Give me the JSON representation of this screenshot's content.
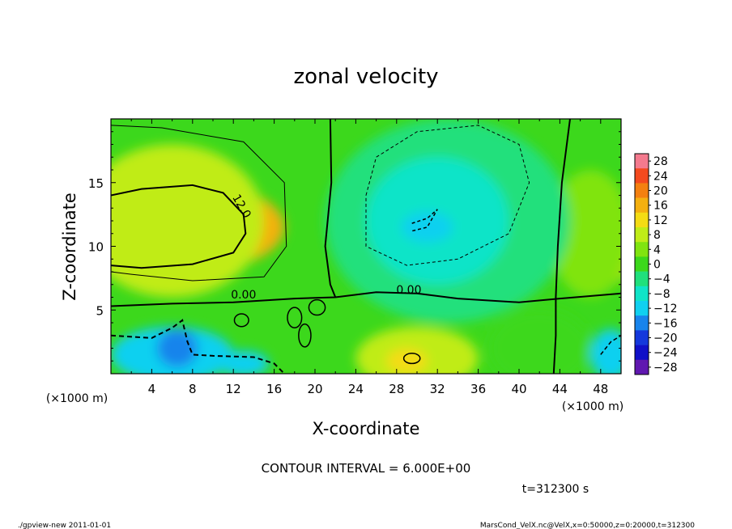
{
  "chart_data": {
    "type": "heatmap",
    "title": "zonal velocity",
    "xlabel": "X-coordinate",
    "ylabel": "Z-coordinate",
    "x_unit_label": "(×1000 m)",
    "z_unit_label": "(×1000 m)",
    "xlim": [
      0,
      50
    ],
    "ylim": [
      0,
      20
    ],
    "x_ticks": [
      {
        "value": 4,
        "label": "4"
      },
      {
        "value": 8,
        "label": "8"
      },
      {
        "value": 12,
        "label": "12"
      },
      {
        "value": 16,
        "label": "16"
      },
      {
        "value": 20,
        "label": "20"
      },
      {
        "value": 24,
        "label": "24"
      },
      {
        "value": 28,
        "label": "28"
      },
      {
        "value": 32,
        "label": "32"
      },
      {
        "value": 36,
        "label": "36"
      },
      {
        "value": 40,
        "label": "40"
      },
      {
        "value": 44,
        "label": "44"
      },
      {
        "value": 48,
        "label": "48"
      }
    ],
    "y_ticks": [
      {
        "value": 5,
        "label": "5"
      },
      {
        "value": 10,
        "label": "10"
      },
      {
        "value": 15,
        "label": "15"
      }
    ],
    "colorbar": {
      "levels": [
        28,
        24,
        20,
        16,
        12,
        8,
        4,
        0,
        -4,
        -8,
        -12,
        -16,
        -20,
        -24,
        -28
      ],
      "labels": [
        "28",
        "24",
        "20",
        "16",
        "12",
        "8",
        "4",
        "0",
        "−4",
        "−8",
        "−12",
        "−16",
        "−20",
        "−24",
        "−28"
      ],
      "colors": [
        "#f47a8e",
        "#f44a1e",
        "#f48010",
        "#f4b010",
        "#f4dc14",
        "#c0ec18",
        "#80e410",
        "#3cd81c",
        "#20e07c",
        "#10e4c8",
        "#10d0f0",
        "#1884ec",
        "#1438dc",
        "#1010c8",
        "#6018b0"
      ]
    },
    "contour_interval_text": "CONTOUR INTERVAL = 6.000E+00",
    "contour_labels": [
      "12.0",
      "0.00",
      "0.00"
    ],
    "blobs": [
      {
        "x": 8,
        "z": 11.5,
        "rx": 9,
        "rz": 3.5,
        "value": 16
      },
      {
        "x": 9.5,
        "z": 11.8,
        "rx": 3,
        "rz": 1.5,
        "value": 20
      },
      {
        "x": 6,
        "z": 12,
        "rx": 9,
        "rz": 6,
        "value": 8
      },
      {
        "x": 49,
        "z": 10,
        "rx": 2,
        "rz": 3,
        "value": 14
      },
      {
        "x": 47,
        "z": 11,
        "rx": 4,
        "rz": 5,
        "value": 4
      },
      {
        "x": 33,
        "z": 12,
        "rx": 12,
        "rz": 8,
        "value": -4
      },
      {
        "x": 32,
        "z": 12,
        "rx": 7,
        "rz": 5,
        "value": -8
      },
      {
        "x": 31,
        "z": 11.5,
        "rx": 2.5,
        "rz": 1.2,
        "value": -12
      },
      {
        "x": 6,
        "z": 1.5,
        "rx": 6,
        "rz": 2.2,
        "value": -10
      },
      {
        "x": 6.5,
        "z": 2,
        "rx": 2,
        "rz": 1.5,
        "value": -14
      },
      {
        "x": 13,
        "z": 0.8,
        "rx": 2.5,
        "rz": 1,
        "value": -12
      },
      {
        "x": 30,
        "z": 1.2,
        "rx": 6,
        "rz": 2.5,
        "value": 8
      },
      {
        "x": 29,
        "z": 1.0,
        "rx": 2,
        "rz": 1,
        "value": 12
      },
      {
        "x": 49,
        "z": 1.5,
        "rx": 2,
        "rz": 2,
        "value": -10
      },
      {
        "x": 42,
        "z": 2,
        "rx": 5,
        "rz": 3,
        "value": 3
      }
    ],
    "info_time": "t=312300 s",
    "footer_left": "./gpview-new   2011-01-01",
    "footer_right": "MarsCond_VelX.nc@VelX,x=0:50000,z=0:20000,t=312300"
  }
}
